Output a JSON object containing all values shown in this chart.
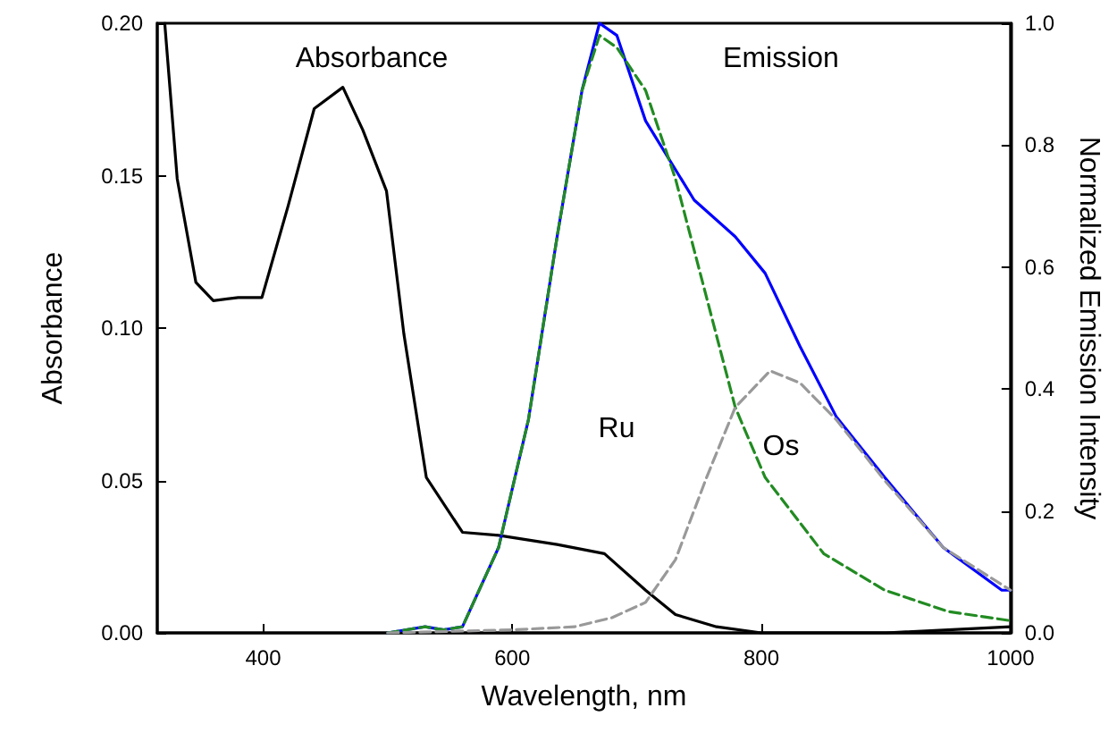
{
  "chart_data": {
    "type": "line",
    "xlabel": "Wavelength, nm",
    "ylabel": "Absorbance",
    "y2label": "Normalized Emission Intensity",
    "xlim": [
      315,
      1000
    ],
    "xticks": [
      400,
      600,
      800,
      1000
    ],
    "ylim": [
      0,
      0.2
    ],
    "yticks": [
      {
        "value": 0,
        "label": "0.00"
      },
      {
        "value": 0.05,
        "label": "0.05"
      },
      {
        "value": 0.1,
        "label": "0.10"
      },
      {
        "value": 0.15,
        "label": "0.15"
      },
      {
        "value": 0.2,
        "label": "0.20"
      }
    ],
    "y2lim": [
      0,
      1
    ],
    "y2ticks": [
      {
        "value": 0,
        "label": "0.0"
      },
      {
        "value": 0.2,
        "label": "0.2"
      },
      {
        "value": 0.4,
        "label": "0.4"
      },
      {
        "value": 0.6,
        "label": "0.6"
      },
      {
        "value": 0.8,
        "label": "0.8"
      },
      {
        "value": 1,
        "label": "1.0"
      }
    ],
    "grid": false,
    "marker": "none",
    "series": [
      {
        "color": "#000000",
        "line_style": "solid",
        "x": [
          321,
          331,
          346,
          360,
          380,
          399,
          420,
          441,
          464,
          480,
          499,
          513,
          531,
          560,
          589,
          636,
          674,
          707,
          731,
          764,
          800,
          900,
          1000
        ],
        "values": [
          0.2,
          0.149,
          0.115,
          0.109,
          0.11,
          0.11,
          0.14,
          0.172,
          0.179,
          0.165,
          0.145,
          0.098,
          0.051,
          0.033,
          0.032,
          0.029,
          0.026,
          0.014,
          0.006,
          0.002,
          0,
          0,
          0.002
        ]
      },
      {
        "color": "#0000ff",
        "line_style": "solid",
        "axis": "y2",
        "x": [
          500,
          530,
          545,
          560,
          589,
          613,
          636,
          656,
          670,
          684,
          707,
          746,
          779,
          803,
          831,
          860,
          899,
          946,
          993,
          1000
        ],
        "values": [
          0,
          0.01,
          0.005,
          0.01,
          0.14,
          0.35,
          0.65,
          0.89,
          1.0,
          0.98,
          0.84,
          0.71,
          0.65,
          0.59,
          0.47,
          0.355,
          0.255,
          0.14,
          0.07,
          0.07
        ]
      },
      {
        "color": "#228b22",
        "line_style": "dashed",
        "axis": "y2",
        "x": [
          500,
          530,
          545,
          560,
          589,
          613,
          636,
          656,
          670,
          684,
          707,
          731,
          756,
          779,
          803,
          850,
          899,
          950,
          1000
        ],
        "values": [
          0,
          0.01,
          0.005,
          0.01,
          0.14,
          0.35,
          0.65,
          0.89,
          0.98,
          0.96,
          0.89,
          0.745,
          0.55,
          0.37,
          0.255,
          0.13,
          0.07,
          0.035,
          0.02
        ]
      },
      {
        "color": "#999999",
        "line_style": "dashed",
        "axis": "y2",
        "x": [
          500,
          600,
          650,
          680,
          707,
          731,
          756,
          779,
          807,
          831,
          860,
          899,
          946,
          1000
        ],
        "values": [
          0,
          0.005,
          0.01,
          0.025,
          0.05,
          0.12,
          0.255,
          0.37,
          0.43,
          0.41,
          0.35,
          0.25,
          0.14,
          0.07
        ]
      }
    ],
    "annotations": [
      "Absorbance",
      "Emission",
      "Ru",
      "Os"
    ]
  }
}
